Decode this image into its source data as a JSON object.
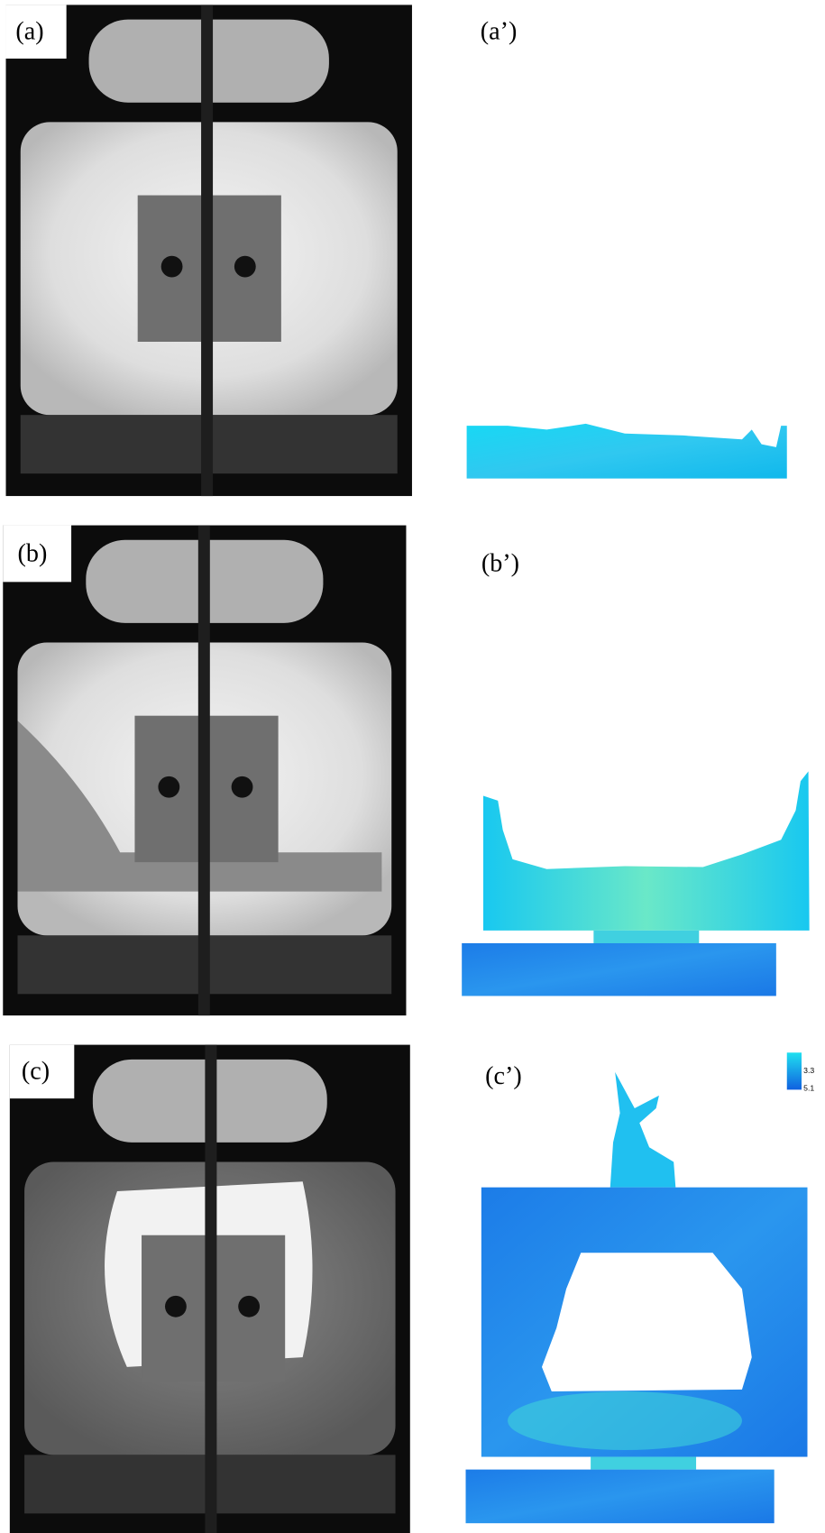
{
  "panels": [
    {
      "label": "(a)"
    },
    {
      "label": "(a’)"
    },
    {
      "label": "(b)"
    },
    {
      "label": "(b’)"
    },
    {
      "label": "(c)"
    },
    {
      "label": "(c’)"
    }
  ],
  "colorbar": {
    "labels": [
      "3.3",
      "5.1"
    ]
  }
}
